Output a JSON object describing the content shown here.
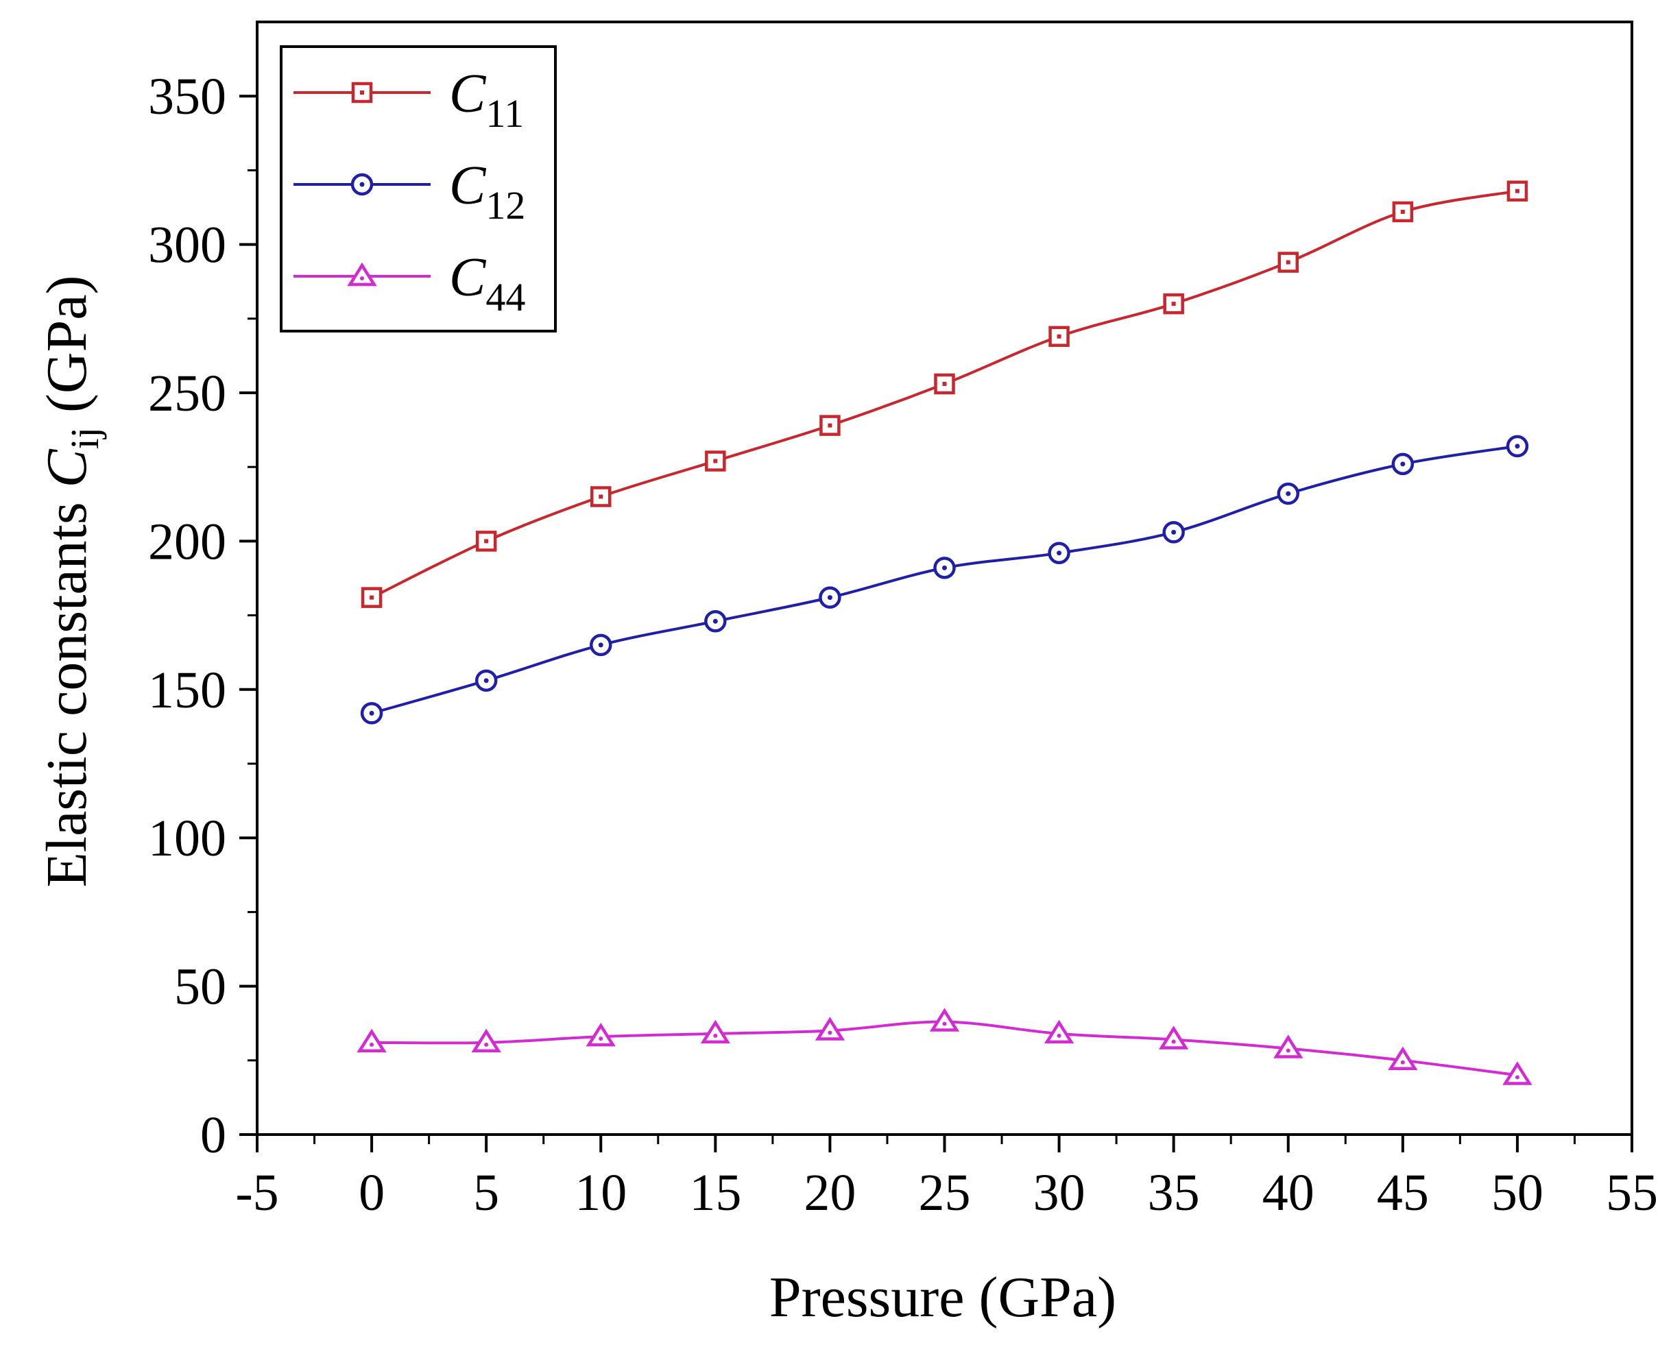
{
  "chart_data": {
    "type": "line",
    "title": "",
    "xlabel": "Pressure (GPa)",
    "ylabel": {
      "prefix": "Elastic constants ",
      "symbol": "C",
      "subscript": "ij",
      "suffix": " (GPa)"
    },
    "xlim": [
      -5,
      55
    ],
    "ylim": [
      0,
      375
    ],
    "x_ticks": [
      "-5",
      "0",
      "5",
      "10",
      "15",
      "20",
      "25",
      "30",
      "35",
      "40",
      "45",
      "50",
      "55"
    ],
    "y_ticks": [
      "0",
      "50",
      "100",
      "150",
      "200",
      "250",
      "300",
      "350"
    ],
    "x": [
      0,
      5,
      10,
      15,
      20,
      25,
      30,
      35,
      40,
      45,
      50
    ],
    "legend_position": "top-left",
    "series": [
      {
        "name": "C11",
        "symbol": "C",
        "subscript": "11",
        "marker": "square",
        "color": "#c8282d",
        "values": [
          181,
          200,
          215,
          227,
          239,
          253,
          269,
          280,
          294,
          311,
          318
        ]
      },
      {
        "name": "C12",
        "symbol": "C",
        "subscript": "12",
        "marker": "circle",
        "color": "#1f1fa8",
        "values": [
          142,
          153,
          165,
          173,
          181,
          191,
          196,
          203,
          216,
          226,
          232
        ]
      },
      {
        "name": "C44",
        "symbol": "C",
        "subscript": "44",
        "marker": "triangle",
        "color": "#d42ad4",
        "values": [
          31,
          31,
          33,
          34,
          35,
          38,
          34,
          32,
          29,
          25,
          20
        ]
      }
    ]
  }
}
